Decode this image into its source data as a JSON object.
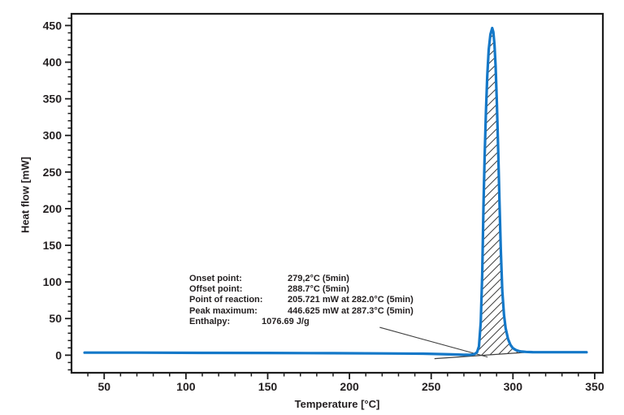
{
  "chart_data": {
    "type": "line",
    "xlabel": "Temperature [°C]",
    "ylabel": "Heat flow [mW]",
    "xlim": [
      30,
      355
    ],
    "ylim": [
      -24,
      466
    ],
    "x_major_ticks": [
      50,
      100,
      150,
      200,
      250,
      300,
      350
    ],
    "y_major_ticks": [
      0,
      50,
      100,
      150,
      200,
      250,
      300,
      350,
      400,
      450
    ],
    "minor_tick_step": 10,
    "grid": false,
    "legend": "none",
    "line_color": "#1478c8",
    "axis_color": "#1c1c1c",
    "text_color": "#231f20",
    "hatch_color": "#3f3f3f",
    "series": [
      {
        "name": "heat flow",
        "points": [
          [
            38,
            3.5
          ],
          [
            70,
            3.5
          ],
          [
            110,
            3.2
          ],
          [
            150,
            3.0
          ],
          [
            190,
            2.7
          ],
          [
            220,
            2.4
          ],
          [
            245,
            2.0
          ],
          [
            258,
            1.4
          ],
          [
            265,
            0.9
          ],
          [
            270,
            0.5
          ],
          [
            274,
            0.5
          ],
          [
            276.5,
            1.5
          ],
          [
            278,
            4
          ],
          [
            279.2,
            12
          ],
          [
            280.3,
            45
          ],
          [
            281.2,
            110
          ],
          [
            282,
            205.7
          ],
          [
            282.7,
            272
          ],
          [
            283.5,
            333
          ],
          [
            284.3,
            381
          ],
          [
            285.2,
            417
          ],
          [
            286.2,
            438
          ],
          [
            287.3,
            446.6
          ],
          [
            288,
            441
          ],
          [
            288.7,
            424
          ],
          [
            289.4,
            394
          ],
          [
            290.2,
            342
          ],
          [
            291,
            278
          ],
          [
            291.8,
            207
          ],
          [
            292.6,
            143
          ],
          [
            293.5,
            88
          ],
          [
            294.5,
            55
          ],
          [
            295.5,
            37
          ],
          [
            297,
            22
          ],
          [
            298.5,
            14
          ],
          [
            300,
            9.5
          ],
          [
            302,
            6.8
          ],
          [
            304,
            5.4
          ],
          [
            305.5,
            4.9
          ],
          [
            308,
            4.5
          ],
          [
            312,
            4.2
          ],
          [
            320,
            4
          ],
          [
            335,
            4
          ],
          [
            345,
            4
          ]
        ]
      }
    ],
    "integration_baseline": [
      [
        252,
        -4.7
      ],
      [
        307,
        3.7
      ]
    ],
    "hatch_range": [
      270,
      305.5
    ],
    "leader_line": {
      "from": [
        218.5,
        38
      ],
      "to": [
        284.5,
        -2.5
      ]
    },
    "peak": {
      "onset_c": "279,2",
      "offset_c": 288.7,
      "reaction_mw": 205.721,
      "reaction_c": 282.0,
      "max_mw": 446.625,
      "max_c": 287.3,
      "enthalpy_j_per_g": 1076.69
    }
  },
  "annotation": {
    "rows": [
      {
        "label": "Onset point:",
        "value": "279,2°C (5min)"
      },
      {
        "label": "Offset point:",
        "value": "288.7°C (5min)"
      },
      {
        "label": "Point of reaction:",
        "value": "205.721 mW at 282.0°C (5min)"
      },
      {
        "label": "Peak maximum:",
        "value": "446.625 mW at 287.3°C (5min)"
      },
      {
        "label": "Enthalpy:",
        "value": "1076.69 J/g"
      }
    ]
  }
}
